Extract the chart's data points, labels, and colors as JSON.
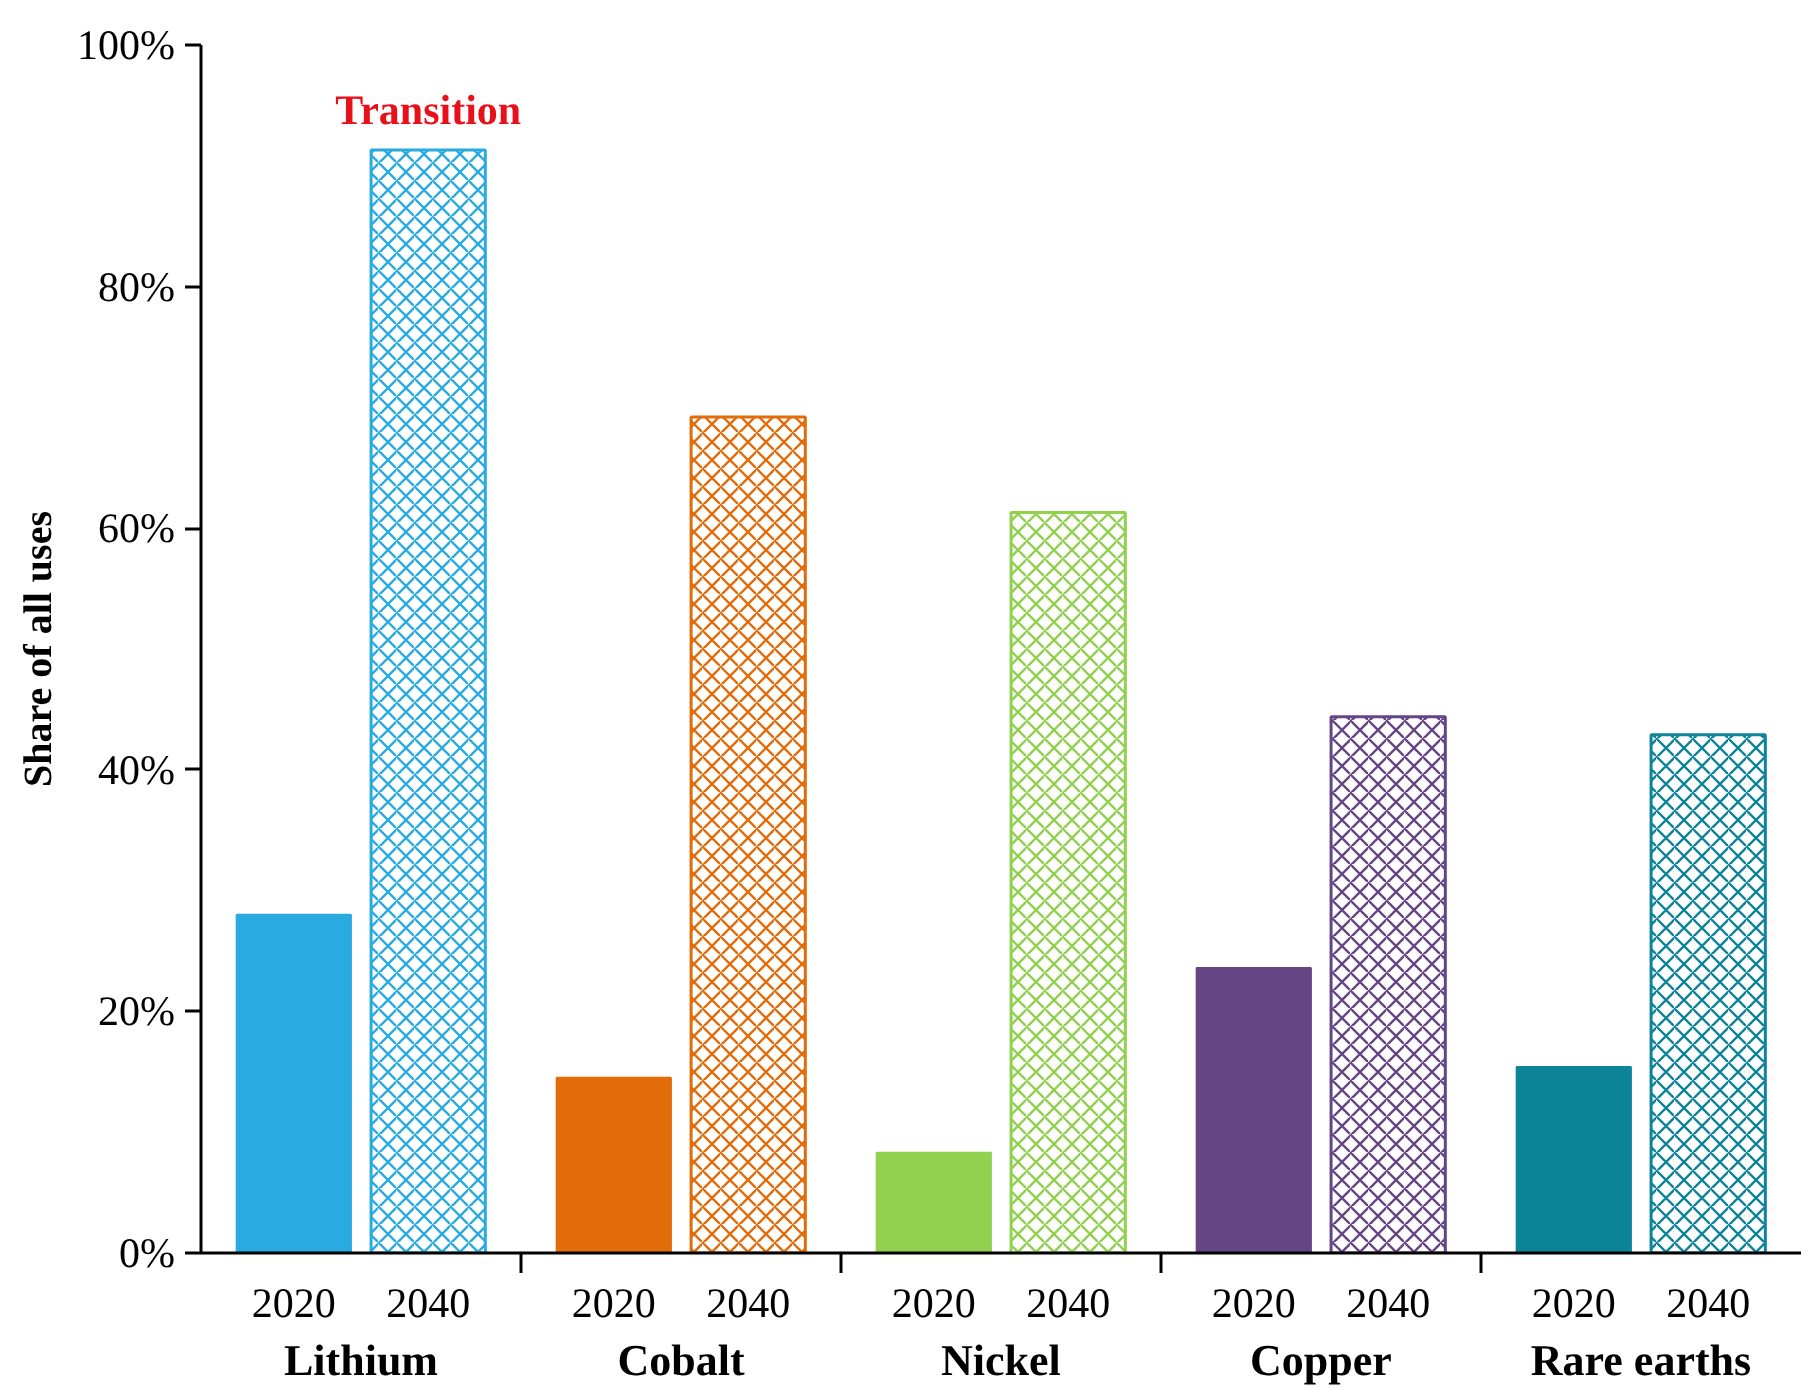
{
  "chart_data": {
    "type": "bar",
    "ylabel": "Share of all uses",
    "categories": [
      "Lithium",
      "Cobalt",
      "Nickel",
      "Copper",
      "Rare earths"
    ],
    "series": [
      {
        "name": "2020",
        "colors": [
          "#29abe2",
          "#e36c0a",
          "#92d050",
          "#654584",
          "#0e8499"
        ],
        "values": [
          28,
          14.5,
          8.3,
          23.6,
          15.4
        ]
      },
      {
        "name": "2040",
        "colors": [
          "#29abe2",
          "#e36c0a",
          "#92d050",
          "#654584",
          "#0e8499"
        ],
        "values": [
          91.3,
          69.2,
          61.3,
          44.4,
          42.9
        ]
      }
    ],
    "ylim": [
      0,
      100
    ],
    "yticks": [
      {
        "value": 0,
        "label": "0%"
      },
      {
        "value": 20,
        "label": "20%"
      },
      {
        "value": 40,
        "label": "40%"
      },
      {
        "value": 60,
        "label": "60%"
      },
      {
        "value": 80,
        "label": "80%"
      },
      {
        "value": 100,
        "label": "100%"
      }
    ],
    "annotations": [
      "Transition"
    ],
    "grid": false
  }
}
